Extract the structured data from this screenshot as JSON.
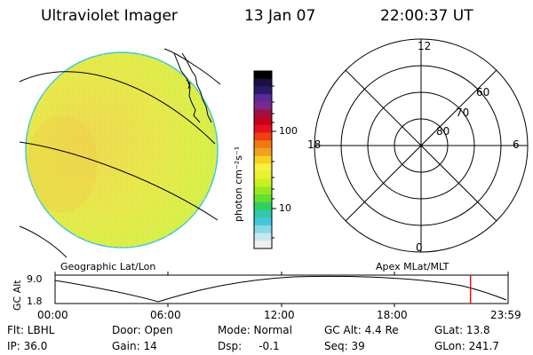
{
  "header": {
    "instrument": "Ultraviolet Imager",
    "date": "13 Jan 07",
    "time": "22:00:37 UT"
  },
  "colorbar": {
    "unit_label": "photon cm⁻²s⁻¹",
    "tick_labels": [
      "100",
      "10"
    ],
    "colors": [
      "#000000",
      "#1a1040",
      "#2b1a6b",
      "#5b2a9a",
      "#7a2a8a",
      "#a01040",
      "#c8001e",
      "#e8101e",
      "#f04010",
      "#f07a10",
      "#f0a020",
      "#f8d020",
      "#f8f040",
      "#e8f030",
      "#c8f020",
      "#98e820",
      "#60e030",
      "#30d060",
      "#30c8a8",
      "#40c8d8",
      "#88d8e8",
      "#c8e8f0",
      "#f0f0f0"
    ]
  },
  "polar_plot": {
    "mlt_labels": {
      "top": "12",
      "left": "18",
      "right": "6",
      "bottom": "0"
    },
    "lat_labels": [
      "60",
      "70",
      "80"
    ]
  },
  "timeline": {
    "left_label": "Geographic Lat/Lon",
    "right_label": "Apex MLat/MLT",
    "y_axis_label": "GC Alt",
    "y_max": "9.0",
    "y_min": "1.8",
    "x_ticks": [
      "00:00",
      "06:00",
      "12:00",
      "18:00",
      "23:59"
    ],
    "current_time_marker_fraction": 0.917,
    "marker_color": "#e01010"
  },
  "info": {
    "row1": {
      "flt": "Flt: LBHL",
      "door": "Door: Open",
      "mode": "Mode: Normal",
      "gc_alt": "GC Alt: 4.4 Re",
      "glat": "GLat: 13.8"
    },
    "row2": {
      "ip": "IP: 36.0",
      "gain": "Gain: 14",
      "dsp": "Dsp:     -0.1",
      "seq": "Seq: 39",
      "glon": "GLon: 241.7"
    }
  }
}
